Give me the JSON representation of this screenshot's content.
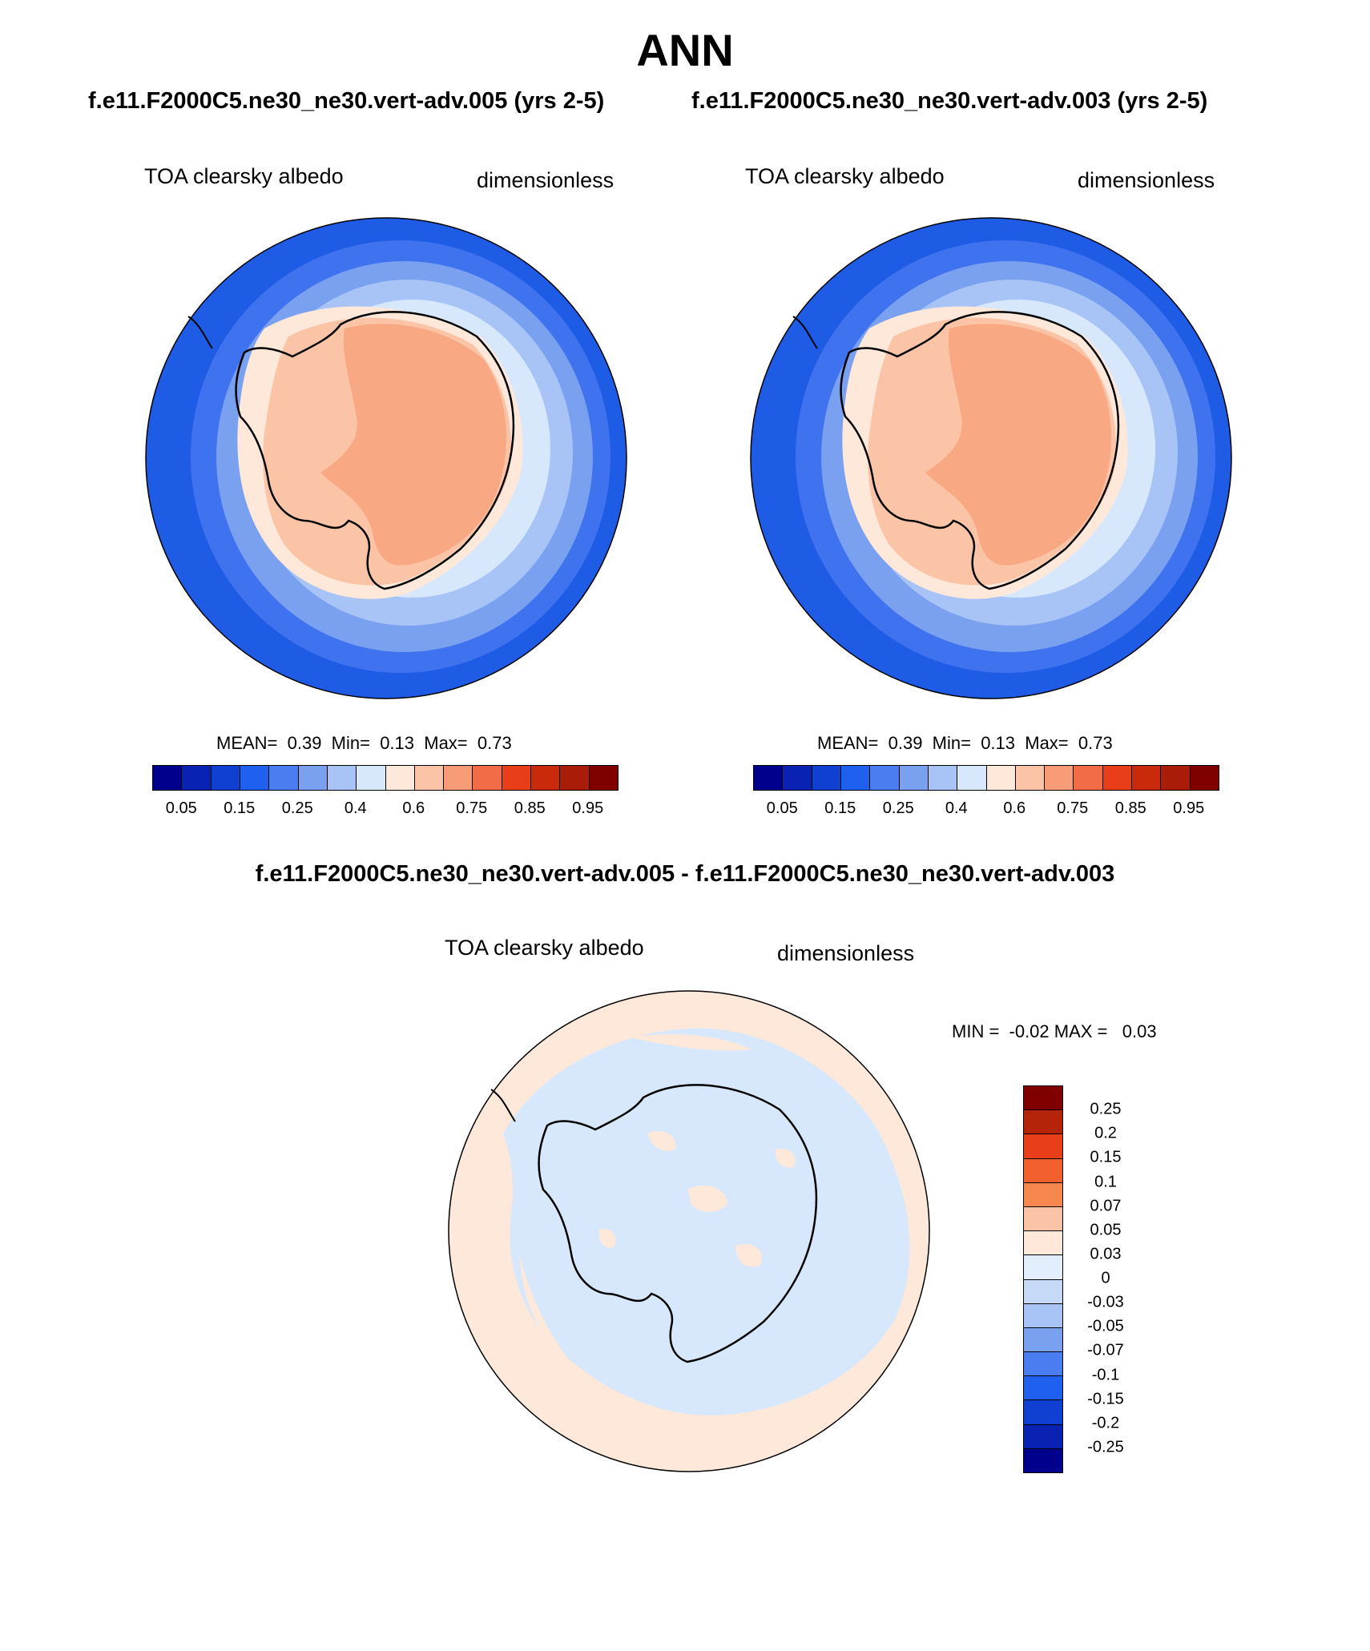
{
  "title": "ANN",
  "panels": {
    "left": {
      "case": "f.e11.F2000C5.ne30_ne30.vert-adv.005 (yrs 2-5)",
      "variable": "TOA clearsky albedo",
      "units": "dimensionless",
      "stats": "MEAN=  0.39  Min=  0.13  Max=  0.73"
    },
    "right": {
      "case": "f.e11.F2000C5.ne30_ne30.vert-adv.003 (yrs 2-5)",
      "variable": "TOA clearsky albedo",
      "units": "dimensionless",
      "stats": "MEAN=  0.39  Min=  0.13  Max=  0.73"
    },
    "diff": {
      "title": "f.e11.F2000C5.ne30_ne30.vert-adv.005 - f.e11.F2000C5.ne30_ne30.vert-adv.003",
      "variable": "TOA clearsky albedo",
      "units": "dimensionless",
      "stats": "MIN =  -0.02 MAX =   0.03"
    }
  },
  "colorbar_main": {
    "colors": [
      "#00008c",
      "#0a22b4",
      "#1040d2",
      "#2060ef",
      "#4a7ef0",
      "#7aa0f0",
      "#a8c4f6",
      "#d8e8fc",
      "#fde8da",
      "#fbc4a6",
      "#f79c77",
      "#f26d47",
      "#e83e1a",
      "#c92a0c",
      "#a81c08",
      "#800000"
    ],
    "labels": [
      "0.05",
      "0.15",
      "0.25",
      "0.4",
      "0.6",
      "0.75",
      "0.85",
      "0.95"
    ]
  },
  "colorbar_diff": {
    "colors": [
      "#800000",
      "#b52409",
      "#e83e1a",
      "#f2602e",
      "#f5874f",
      "#fbc4a6",
      "#fde8da",
      "#e2eefc",
      "#c6daf8",
      "#a8c4f6",
      "#7aa0f0",
      "#4a7ef0",
      "#2060ef",
      "#1040d2",
      "#0a22b4",
      "#00008c"
    ],
    "labels": [
      "0.25",
      "0.2",
      "0.15",
      "0.1",
      "0.07",
      "0.05",
      "0.03",
      "0",
      "-0.03",
      "-0.05",
      "-0.07",
      "-0.1",
      "-0.15",
      "-0.2",
      "-0.25"
    ]
  },
  "map_colors": {
    "ocean_outer": "#1f5ce6",
    "band_1": "#3f72ee",
    "band_2": "#7aa0f0",
    "band_3": "#a8c4f6",
    "band_4": "#d8e8fc",
    "coast_light": "#fde8da",
    "ice_shelf": "#fbc4a6",
    "plateau": "#f8a882",
    "diff_positive": "#fde8da",
    "diff_negative": "#d8e8fc"
  }
}
